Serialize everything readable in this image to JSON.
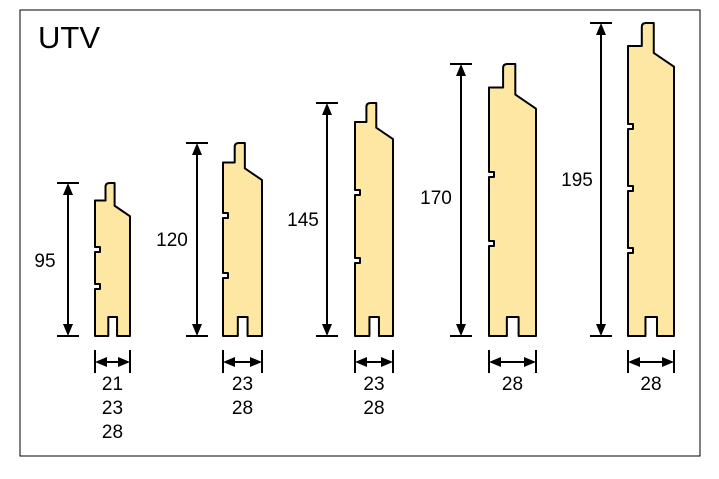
{
  "title": "UTV",
  "profiles": [
    {
      "height": 95,
      "widths": [
        21,
        23,
        28
      ]
    },
    {
      "height": 120,
      "widths": [
        23,
        28
      ]
    },
    {
      "height": 145,
      "widths": [
        23,
        28
      ]
    },
    {
      "height": 170,
      "widths": [
        28
      ]
    },
    {
      "height": 195,
      "widths": [
        28
      ]
    }
  ]
}
